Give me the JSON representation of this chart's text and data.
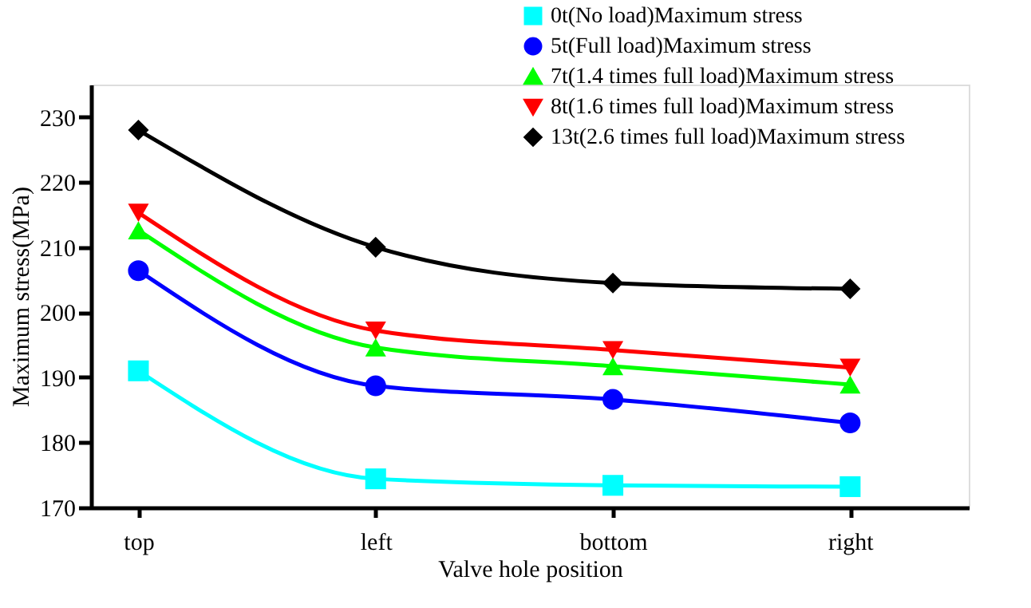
{
  "chart_data": {
    "type": "line",
    "xlabel": "Valve hole position",
    "ylabel": "Maximum stress(MPa)",
    "categories": [
      "top",
      "left",
      "bottom",
      "right"
    ],
    "series": [
      {
        "name": "0t(No load)Maximum stress",
        "color": "#00ffff",
        "marker": "square",
        "values": [
          191,
          174.4,
          173.4,
          173.2
        ]
      },
      {
        "name": "5t(Full load)Maximum stress",
        "color": "#0000ff",
        "marker": "circle",
        "values": [
          206.4,
          188.7,
          186.6,
          183
        ]
      },
      {
        "name": "7t(1.4 times full load)Maximum stress",
        "color": "#00ff00",
        "marker": "triangle",
        "values": [
          212.6,
          194.6,
          191.7,
          188.9
        ]
      },
      {
        "name": "8t(1.6 times full load)Maximum stress",
        "color": "#ff0000",
        "marker": "triangle-down",
        "values": [
          215.3,
          197.2,
          194.2,
          191.5
        ]
      },
      {
        "name": "13t(2.6 times full load)Maximum stress",
        "color": "#000000",
        "marker": "diamond",
        "values": [
          228,
          210,
          204.5,
          203.6
        ]
      }
    ],
    "ylim": [
      170,
      235
    ],
    "yticks": [
      170,
      180,
      190,
      200,
      210,
      220,
      230
    ],
    "grid": false,
    "legend": "top right",
    "line_style": "solid"
  }
}
